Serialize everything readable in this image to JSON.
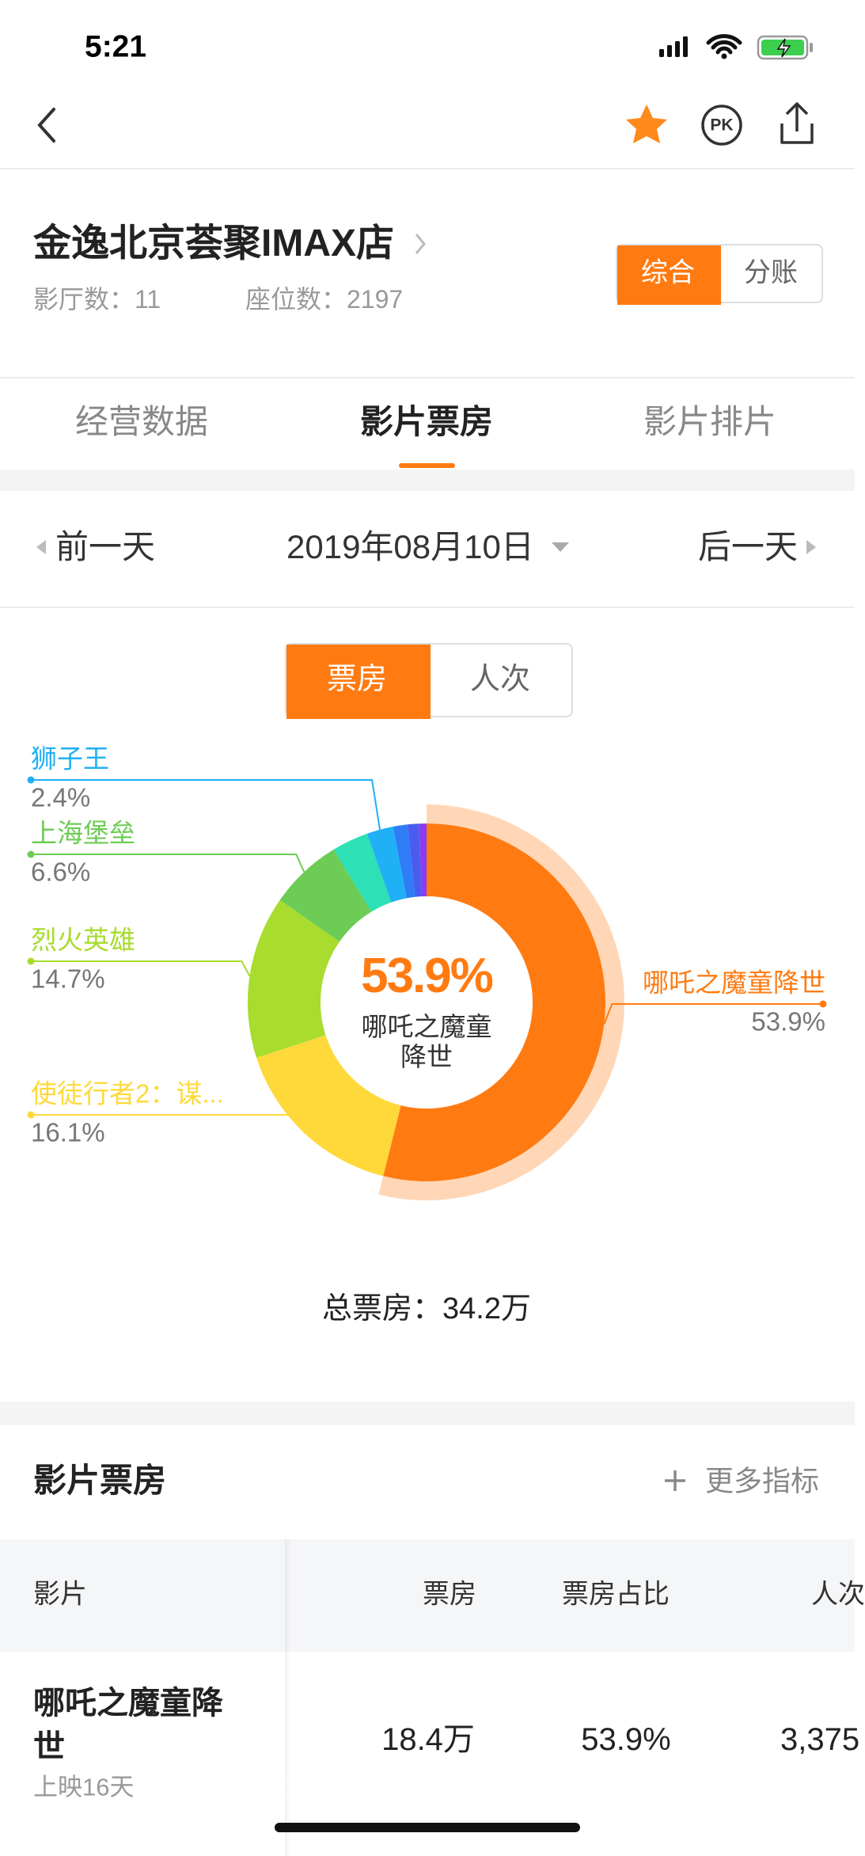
{
  "status_bar": {
    "time": "5:21"
  },
  "nav": {
    "pk": "PK"
  },
  "header": {
    "name": "金逸北京荟聚IMAX店",
    "halls": "影厅数：11",
    "seats": "座位数：2197",
    "toggle": [
      "综合",
      "分账"
    ]
  },
  "tabs": [
    "经营数据",
    "影片票房",
    "影片排片"
  ],
  "date_nav": {
    "prev": "前一天",
    "date": "2019年08月10日",
    "next": "后一天"
  },
  "metric_toggle": [
    "票房",
    "人次"
  ],
  "chart_data": {
    "type": "donut",
    "categories": [
      "哪吒之魔童降世",
      "使徒行者2：谋...",
      "烈火英雄",
      "上海堡垒",
      null,
      "狮子王",
      null,
      null,
      null
    ],
    "values": [
      53.9,
      16.1,
      14.7,
      6.6,
      3.3,
      2.4,
      1.3,
      1.0,
      0.7
    ],
    "value_labels": [
      "53.9%",
      "16.1%",
      "14.7%",
      "6.6%",
      null,
      "2.4%",
      null,
      null,
      null
    ],
    "colors": [
      "#ff7b12",
      "#ffd93a",
      "#a8dc2e",
      "#6ccc55",
      "#2ee0b5",
      "#1fb0f5",
      "#2e7cf6",
      "#4a5cf0",
      "#8a3cf0"
    ],
    "total": "总票房：34.2万"
  },
  "table": {
    "title": "影片票房",
    "more": "更多指标",
    "columns": [
      "影片",
      "票房",
      "票房占比",
      "人次"
    ],
    "rows": [
      [
        "哪吒之魔童降世",
        "18.4万",
        "53.9%",
        "3,375"
      ]
    ],
    "row_notes": [
      "上映16天"
    ]
  }
}
